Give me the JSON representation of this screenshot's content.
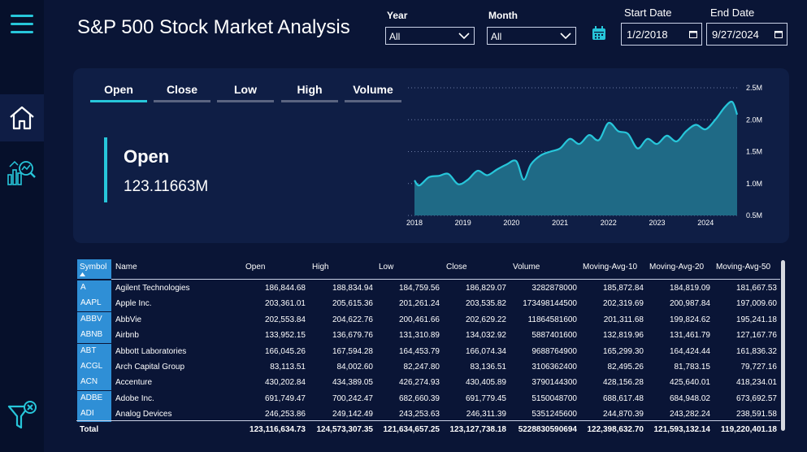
{
  "header": {
    "title": "S&P 500 Stock Market Analysis",
    "year_label": "Year",
    "year_value": "All",
    "month_label": "Month",
    "month_value": "All",
    "start_date_label": "Start Date",
    "start_date_value": "1/2/2018",
    "end_date_label": "End Date",
    "end_date_value": "9/27/2024"
  },
  "sidebar": {
    "items": [
      {
        "icon": "hamburger-menu-icon"
      },
      {
        "icon": "home-icon"
      },
      {
        "icon": "analytics-report-icon"
      },
      {
        "icon": "clear-filter-icon"
      }
    ]
  },
  "tabs": [
    {
      "label": "Open",
      "active": true
    },
    {
      "label": "Close",
      "active": false
    },
    {
      "label": "Low",
      "active": false
    },
    {
      "label": "High",
      "active": false
    },
    {
      "label": "Volume",
      "active": false
    }
  ],
  "kpi": {
    "title": "Open",
    "value": "123.11663M"
  },
  "chart_data": {
    "type": "area",
    "x": [
      2018.0,
      2018.1,
      2018.3,
      2018.5,
      2018.7,
      2018.9,
      2019.1,
      2019.3,
      2019.5,
      2019.7,
      2019.9,
      2020.1,
      2020.25,
      2020.4,
      2020.6,
      2020.8,
      2021.0,
      2021.2,
      2021.4,
      2021.6,
      2021.8,
      2022.0,
      2022.2,
      2022.4,
      2022.6,
      2022.8,
      2023.0,
      2023.2,
      2023.4,
      2023.6,
      2023.8,
      2024.0,
      2024.2,
      2024.4,
      2024.55,
      2024.65
    ],
    "values": [
      1.05,
      0.97,
      1.1,
      1.12,
      1.15,
      0.99,
      1.06,
      1.2,
      1.13,
      1.22,
      1.3,
      1.35,
      1.06,
      1.3,
      1.44,
      1.5,
      1.55,
      1.7,
      1.62,
      1.76,
      1.68,
      1.95,
      1.82,
      1.78,
      1.55,
      1.7,
      1.62,
      1.75,
      1.66,
      1.82,
      1.92,
      1.85,
      2.0,
      2.2,
      2.28,
      2.08
    ],
    "xlabel": "",
    "ylabel": "",
    "x_ticks": [
      "2018",
      "2019",
      "2020",
      "2021",
      "2022",
      "2023",
      "2024"
    ],
    "y_ticks": [
      "0.5M",
      "1.0M",
      "1.5M",
      "2.0M",
      "2.5M"
    ],
    "ylim": [
      0.5,
      2.5
    ],
    "xlim": [
      2018,
      2024.7
    ],
    "grid": true
  },
  "table": {
    "columns": [
      "Symbol",
      "Name",
      "Open",
      "High",
      "Low",
      "Close",
      "Volume",
      "Moving-Avg-10",
      "Moving-Avg-20",
      "Moving-Avg-50"
    ],
    "rows": [
      [
        "A",
        "Agilent Technologies",
        "186,844.68",
        "188,834.94",
        "184,759.56",
        "186,829.07",
        "3282878000",
        "185,872.84",
        "184,819.09",
        "181,667.53"
      ],
      [
        "AAPL",
        "Apple Inc.",
        "203,361.01",
        "205,615.36",
        "201,261.24",
        "203,535.82",
        "173498144500",
        "202,319.69",
        "200,987.84",
        "197,009.60"
      ],
      [
        "ABBV",
        "AbbVie",
        "202,553.84",
        "204,622.76",
        "200,461.66",
        "202,629.22",
        "11864581600",
        "201,311.68",
        "199,824.62",
        "195,241.18"
      ],
      [
        "ABNB",
        "Airbnb",
        "133,952.15",
        "136,679.76",
        "131,310.89",
        "134,032.92",
        "5887401600",
        "132,819.96",
        "131,461.79",
        "127,167.76"
      ],
      [
        "ABT",
        "Abbott Laboratories",
        "166,045.26",
        "167,594.28",
        "164,453.79",
        "166,074.34",
        "9688764900",
        "165,299.30",
        "164,424.44",
        "161,836.32"
      ],
      [
        "ACGL",
        "Arch Capital Group",
        "83,113.51",
        "84,002.60",
        "82,247.80",
        "83,136.51",
        "3106362400",
        "82,495.26",
        "81,783.15",
        "79,727.16"
      ],
      [
        "ACN",
        "Accenture",
        "430,202.84",
        "434,389.05",
        "426,274.93",
        "430,405.89",
        "3790144300",
        "428,156.28",
        "425,640.01",
        "418,234.01"
      ],
      [
        "ADBE",
        "Adobe Inc.",
        "691,749.47",
        "700,242.47",
        "682,660.39",
        "691,779.45",
        "5150048700",
        "688,617.48",
        "684,948.02",
        "673,692.57"
      ],
      [
        "ADI",
        "Analog Devices",
        "246,253.86",
        "249,142.49",
        "243,253.63",
        "246,311.39",
        "5351245600",
        "244,870.39",
        "243,282.24",
        "238,591.58"
      ]
    ],
    "total": [
      "Total",
      "",
      "123,116,634.73",
      "124,573,307.35",
      "121,634,657.25",
      "123,127,738.18",
      "5228830590694",
      "122,398,632.70",
      "121,593,132.14",
      "119,220,401.18"
    ]
  },
  "colors": {
    "background": "#0a1536",
    "card": "#0f1e45",
    "accent": "#27c6da",
    "area_fill": "#1f6a86",
    "symbol_cell": "#2f8fd6"
  }
}
